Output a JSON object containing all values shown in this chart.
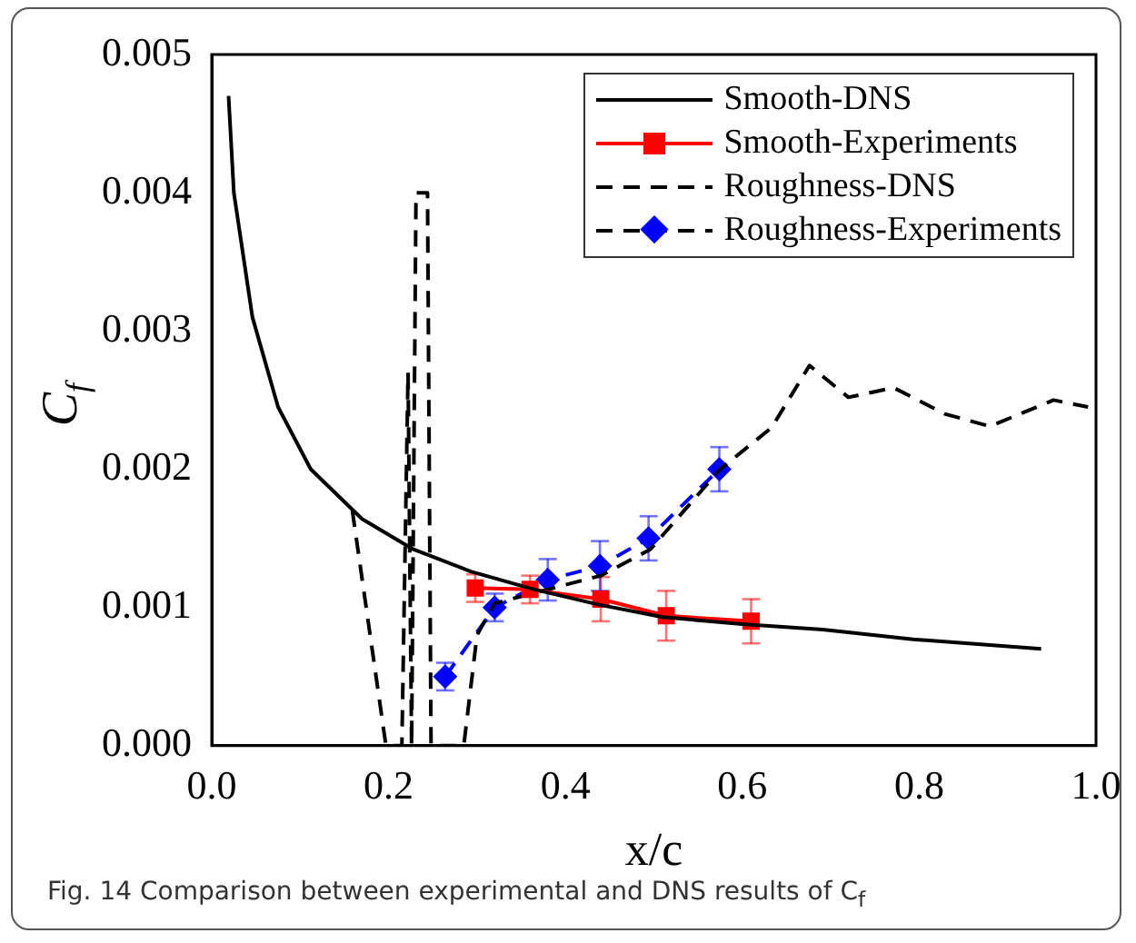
{
  "chart_data": {
    "type": "line",
    "xlabel": "x/c",
    "ylabel": "C$_{f}$",
    "annotations": [
      "Fig. 14 Comparison between experimental and DNS results of C$_{f}$"
    ],
    "xlim": [
      0,
      1
    ],
    "xticks": [
      {
        "value": 0,
        "label": "0.0"
      },
      {
        "value": 0.2,
        "label": "0.2"
      },
      {
        "value": 0.4,
        "label": "0.4"
      },
      {
        "value": 0.6,
        "label": "0.6"
      },
      {
        "value": 0.8,
        "label": "0.8"
      },
      {
        "value": 1,
        "label": "1.0"
      }
    ],
    "ylim": [
      0,
      0.005
    ],
    "yticks": [
      {
        "value": 0,
        "label": "0.000"
      },
      {
        "value": 0.001,
        "label": "0.001"
      },
      {
        "value": 0.002,
        "label": "0.002"
      },
      {
        "value": 0.003,
        "label": "0.003"
      },
      {
        "value": 0.004,
        "label": "0.004"
      },
      {
        "value": 0.005,
        "label": "0.005"
      }
    ],
    "grid": false,
    "legend": "top right",
    "series": [
      {
        "name": "Smooth-DNS",
        "color": "#000000",
        "marker": "none",
        "line_style": "solid",
        "x": [
          0.019,
          0.025,
          0.046,
          0.075,
          0.112,
          0.17,
          0.228,
          0.293,
          0.365,
          0.438,
          0.51,
          0.6,
          0.691,
          0.793,
          0.938
        ],
        "values": [
          0.0047,
          0.004,
          0.0031,
          0.00245,
          0.002,
          0.00164,
          0.00142,
          0.00126,
          0.00113,
          0.00102,
          0.00093,
          0.00088,
          0.00084,
          0.00077,
          0.0007
        ]
      },
      {
        "name": "Smooth-Experiments",
        "color": "#ff0000",
        "marker": "square",
        "line_style": "solid",
        "x": [
          0.298,
          0.36,
          0.44,
          0.514,
          0.61
        ],
        "values": [
          0.00114,
          0.00113,
          0.00106,
          0.00094,
          0.0009
        ],
        "errors": [
          0.0001,
          0.0001,
          0.00016,
          0.00018,
          0.00016
        ]
      },
      {
        "name": "Roughness-DNS",
        "color": "#000000",
        "marker": "none",
        "line_style": "dashed",
        "x": [
          0.159,
          0.197,
          0.215,
          0.222,
          0.226,
          0.231,
          0.244,
          0.248,
          0.285,
          0.3,
          0.32,
          0.38,
          0.44,
          0.496,
          0.575,
          0.633,
          0.676,
          0.72,
          0.771,
          0.829,
          0.88,
          0.952,
          0.991
        ],
        "values": [
          0.0017,
          0,
          0,
          0.0027,
          0,
          0.004,
          0.004,
          0,
          0,
          0.0008,
          0.00103,
          0.00113,
          0.00123,
          0.00142,
          0.002,
          0.0023,
          0.00275,
          0.00252,
          0.00259,
          0.0024,
          0.00231,
          0.0025,
          0.00245
        ]
      },
      {
        "name": "Roughness-Experiments",
        "color": "#0000ff",
        "marker": "diamond",
        "line_style": "dashed",
        "x": [
          0.264,
          0.32,
          0.38,
          0.439,
          0.494,
          0.574
        ],
        "values": [
          0.0005,
          0.001,
          0.0012,
          0.0013,
          0.0015,
          0.002
        ],
        "errors": [
          0.0001,
          0.0001,
          0.00015,
          0.00018,
          0.00016,
          0.00016
        ]
      }
    ]
  }
}
